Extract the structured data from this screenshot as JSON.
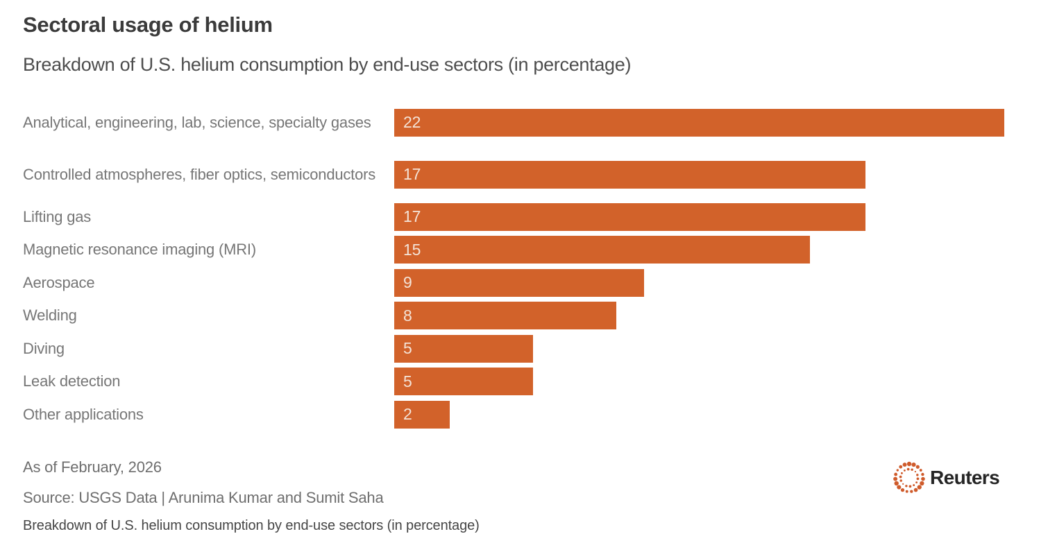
{
  "header": {
    "title": "Sectoral usage of helium",
    "subtitle": "Breakdown of U.S. helium consumption by end-use sectors (in percentage)"
  },
  "chart_data": {
    "type": "bar",
    "orientation": "horizontal",
    "title": "Sectoral usage of helium",
    "subtitle": "Breakdown of U.S. helium consumption by end-use sectors (in percentage)",
    "categories": [
      "Analytical, engineering, lab, science, specialty gases",
      "Controlled atmospheres, fiber optics, semiconductors",
      "Lifting gas",
      "Magnetic resonance imaging (MRI)",
      "Aerospace",
      "Welding",
      "Diving",
      "Leak detection",
      "Other applications"
    ],
    "values": [
      22,
      17,
      17,
      15,
      9,
      8,
      5,
      5,
      2
    ],
    "xlim": [
      0,
      22
    ],
    "unit": "percent",
    "grid": false,
    "legend": "none",
    "value_labels": "inside-left",
    "bar_color": "#d2622a",
    "value_label_color": "#f4e3d7"
  },
  "footer": {
    "as_of": "As of February, 2026",
    "source": "Source: USGS Data | Arunima Kumar and Sumit Saha",
    "caption": "Breakdown of U.S. helium consumption by end-use sectors (in percentage)",
    "logo_text": "Reuters",
    "logo_color": "#cf5b2b"
  }
}
